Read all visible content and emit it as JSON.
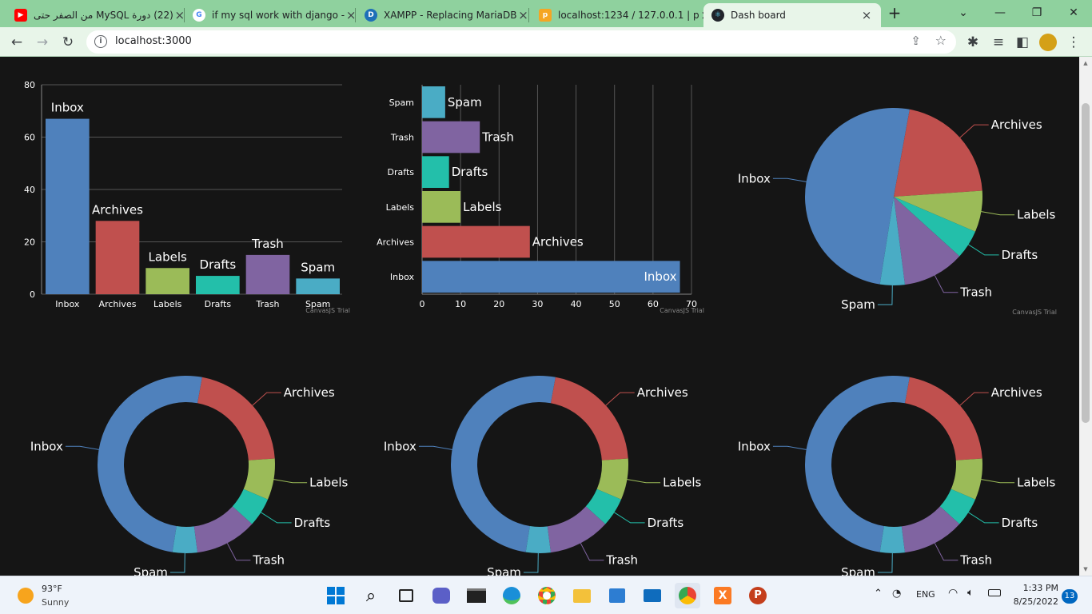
{
  "browser": {
    "tabs": [
      {
        "title": "(22) دورة MySQL من الصفر حتى",
        "favicon": "youtube-icon",
        "color": "#ff0000"
      },
      {
        "title": "if my sql work with django -",
        "favicon": "google-icon",
        "color": "#4285f4"
      },
      {
        "title": "XAMPP - Replacing MariaDB",
        "favicon": "xampp-icon",
        "color": "#1e6fb8"
      },
      {
        "title": "localhost:1234 / 127.0.0.1 | p",
        "favicon": "phpmyadmin-icon",
        "color": "#f5a623"
      },
      {
        "title": "Dash board",
        "favicon": "react-icon",
        "color": "#61dafb"
      }
    ],
    "new_tab": "+",
    "url": "localhost:3000"
  },
  "chart_data": [
    {
      "type": "bar",
      "categories": [
        "Inbox",
        "Archives",
        "Labels",
        "Drafts",
        "Trash",
        "Spam"
      ],
      "values": [
        67,
        28,
        10,
        7,
        15,
        6
      ],
      "ylim": [
        0,
        80
      ],
      "yticks": [
        0,
        20,
        40,
        60,
        80
      ],
      "colors": [
        "#4f81bc",
        "#c0504e",
        "#9bbb58",
        "#23bfaa",
        "#8064a1",
        "#4aacc5"
      ],
      "watermark": "CanvasJS Trial"
    },
    {
      "type": "bar",
      "orientation": "horizontal",
      "categories": [
        "Inbox",
        "Archives",
        "Labels",
        "Drafts",
        "Trash",
        "Spam"
      ],
      "values": [
        67,
        28,
        10,
        7,
        15,
        6
      ],
      "xlim": [
        0,
        70
      ],
      "xticks": [
        0,
        10,
        20,
        30,
        40,
        50,
        60,
        70
      ],
      "colors": [
        "#4f81bc",
        "#c0504e",
        "#9bbb58",
        "#23bfaa",
        "#8064a1",
        "#4aacc5"
      ],
      "watermark": "CanvasJS Trial"
    },
    {
      "type": "pie",
      "categories": [
        "Inbox",
        "Archives",
        "Labels",
        "Drafts",
        "Trash",
        "Spam"
      ],
      "values": [
        67,
        28,
        10,
        7,
        15,
        6
      ],
      "colors": [
        "#4f81bc",
        "#c0504e",
        "#9bbb58",
        "#23bfaa",
        "#8064a1",
        "#4aacc5"
      ],
      "watermark": "CanvasJS Trial"
    },
    {
      "type": "doughnut",
      "categories": [
        "Inbox",
        "Archives",
        "Labels",
        "Drafts",
        "Trash",
        "Spam"
      ],
      "values": [
        67,
        28,
        10,
        7,
        15,
        6
      ],
      "colors": [
        "#4f81bc",
        "#c0504e",
        "#9bbb58",
        "#23bfaa",
        "#8064a1",
        "#4aacc5"
      ]
    },
    {
      "type": "doughnut",
      "categories": [
        "Inbox",
        "Archives",
        "Labels",
        "Drafts",
        "Trash",
        "Spam"
      ],
      "values": [
        67,
        28,
        10,
        7,
        15,
        6
      ],
      "colors": [
        "#4f81bc",
        "#c0504e",
        "#9bbb58",
        "#23bfaa",
        "#8064a1",
        "#4aacc5"
      ]
    },
    {
      "type": "doughnut",
      "categories": [
        "Inbox",
        "Archives",
        "Labels",
        "Drafts",
        "Trash",
        "Spam"
      ],
      "values": [
        67,
        28,
        10,
        7,
        15,
        6
      ],
      "colors": [
        "#4f81bc",
        "#c0504e",
        "#9bbb58",
        "#23bfaa",
        "#8064a1",
        "#4aacc5"
      ]
    }
  ],
  "taskbar": {
    "weather_temp": "93°F",
    "weather_desc": "Sunny",
    "lang": "ENG",
    "time": "1:33 PM",
    "date": "8/25/2022",
    "notifications": "13"
  }
}
